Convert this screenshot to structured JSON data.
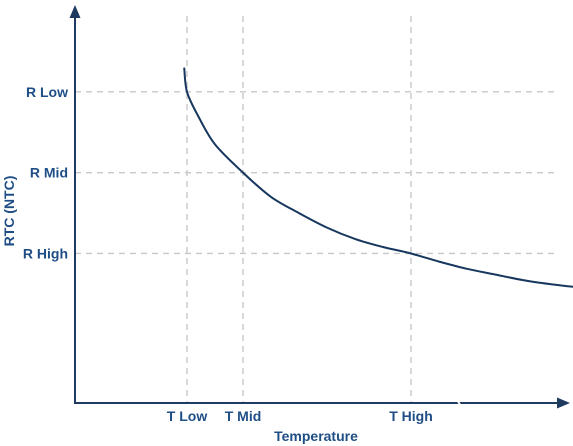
{
  "chart_data": {
    "type": "line",
    "title": "",
    "xlabel": "Temperature",
    "ylabel": "RTC (NTC)",
    "x_ticks": [
      {
        "label": "T Low",
        "value": 1
      },
      {
        "label": "T Mid",
        "value": 2
      },
      {
        "label": "T High",
        "value": 5
      }
    ],
    "y_ticks": [
      {
        "label": "R Low",
        "value": 3
      },
      {
        "label": "R Mid",
        "value": 2
      },
      {
        "label": "R High",
        "value": 1
      }
    ],
    "xlim": [
      -1,
      8
    ],
    "ylim": [
      -0.85,
      4
    ],
    "grid": "dashed at tick positions",
    "series": [
      {
        "color": "#17375e",
        "x": [
          0.95,
          1.0,
          1.2,
          1.5,
          2.0,
          2.5,
          3.0,
          3.5,
          4.0,
          4.5,
          5.0,
          5.5,
          6.0,
          6.5,
          7.0,
          7.5,
          8.0
        ],
        "y": [
          3.3,
          3.0,
          2.7,
          2.35,
          2.0,
          1.7,
          1.5,
          1.32,
          1.18,
          1.08,
          1.0,
          0.9,
          0.81,
          0.74,
          0.67,
          0.62,
          0.58
        ]
      }
    ]
  }
}
